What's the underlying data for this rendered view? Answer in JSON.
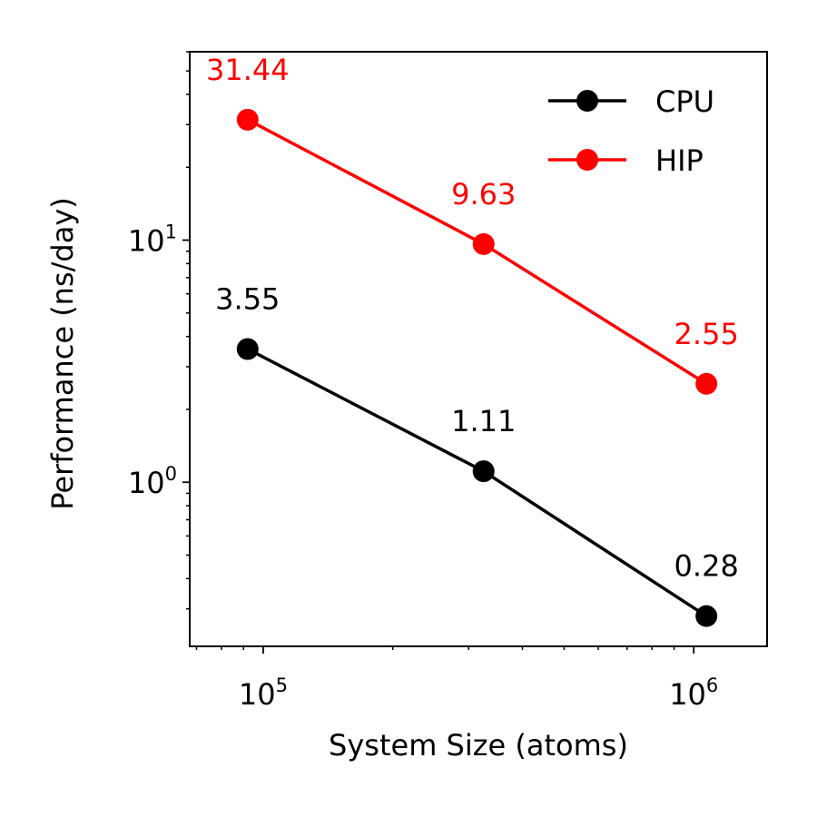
{
  "chart_data": {
    "type": "line",
    "title": "",
    "xlabel": "System Size (atoms)",
    "ylabel": "Performance (ns/day)",
    "xscale": "log",
    "yscale": "log",
    "xlim": [
      67500,
      1480000
    ],
    "ylim": [
      0.21,
      60
    ],
    "x_ticks": [
      {
        "value": 100000,
        "base": "10",
        "exp": "5"
      },
      {
        "value": 1000000,
        "base": "10",
        "exp": "6"
      }
    ],
    "y_ticks": [
      {
        "value": 1,
        "base": "10",
        "exp": "0"
      },
      {
        "value": 10,
        "base": "10",
        "exp": "1"
      }
    ],
    "grid": false,
    "legend_position": "top-right",
    "series": [
      {
        "name": "CPU",
        "color": "#000000",
        "x": [
          92000,
          325000,
          1070000
        ],
        "values": [
          3.55,
          1.11,
          0.28
        ],
        "labels": [
          "3.55",
          "1.11",
          "0.28"
        ]
      },
      {
        "name": "HIP",
        "color": "#ff0000",
        "x": [
          92000,
          325000,
          1070000
        ],
        "values": [
          31.44,
          9.63,
          2.55
        ],
        "labels": [
          "31.44",
          "9.63",
          "2.55"
        ]
      }
    ]
  }
}
